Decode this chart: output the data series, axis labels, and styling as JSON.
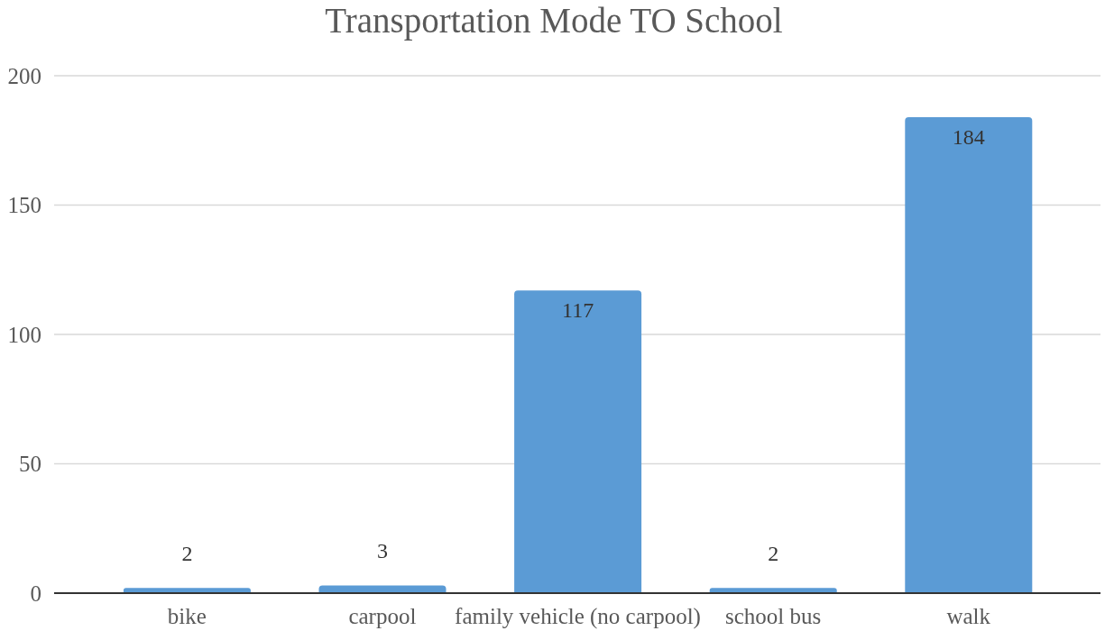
{
  "chart_data": {
    "type": "bar",
    "title": "Transportation Mode TO School",
    "categories": [
      "bike",
      "carpool",
      "family vehicle (no carpool)",
      "school bus",
      "walk"
    ],
    "values": [
      2,
      3,
      117,
      2,
      184
    ],
    "color": "#5b9bd5",
    "ylim": [
      0,
      200
    ],
    "yticks": [
      0,
      50,
      100,
      150,
      200
    ],
    "grid": "y",
    "data_labels": true
  }
}
